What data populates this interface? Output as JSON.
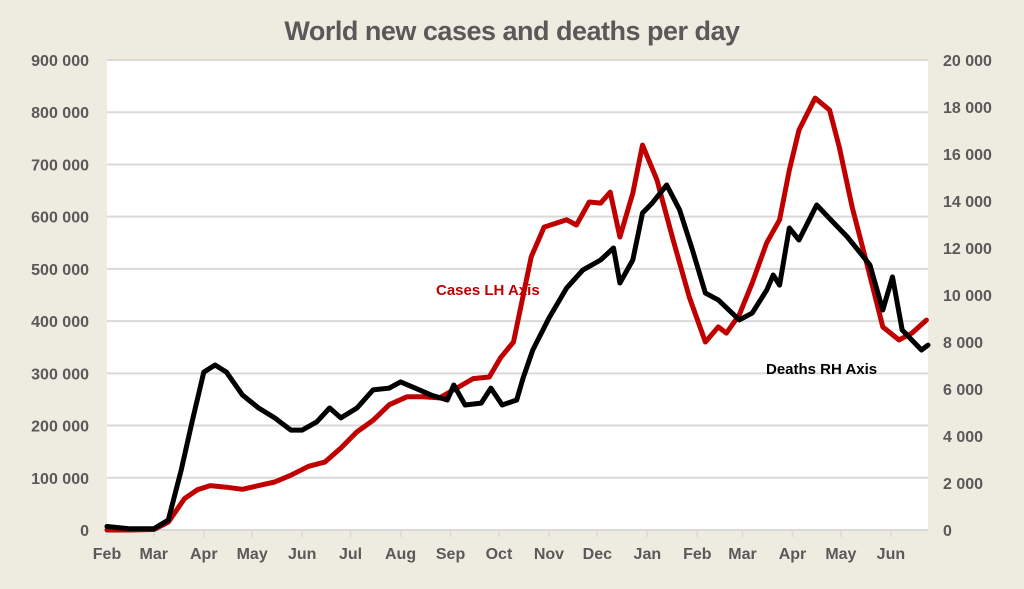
{
  "chart_data": {
    "type": "line",
    "title": "World new cases and deaths per day",
    "grid": true,
    "legend": "none",
    "x_range": [
      "2020-02-01",
      "2021-06-24"
    ],
    "x_ticks": [
      {
        "date": "2020-02-01",
        "label": "Feb"
      },
      {
        "date": "2020-03-01",
        "label": "Mar"
      },
      {
        "date": "2020-04-01",
        "label": "Apr"
      },
      {
        "date": "2020-05-01",
        "label": "May"
      },
      {
        "date": "2020-06-01",
        "label": "Jun"
      },
      {
        "date": "2020-07-01",
        "label": "Jul"
      },
      {
        "date": "2020-08-01",
        "label": "Aug"
      },
      {
        "date": "2020-09-01",
        "label": "Sep"
      },
      {
        "date": "2020-10-01",
        "label": "Oct"
      },
      {
        "date": "2020-11-01",
        "label": "Nov"
      },
      {
        "date": "2020-12-01",
        "label": "Dec"
      },
      {
        "date": "2021-01-01",
        "label": "Jan"
      },
      {
        "date": "2021-02-01",
        "label": "Feb"
      },
      {
        "date": "2021-03-01",
        "label": "Mar"
      },
      {
        "date": "2021-04-01",
        "label": "Apr"
      },
      {
        "date": "2021-05-01",
        "label": "May"
      },
      {
        "date": "2021-06-01",
        "label": "Jun"
      }
    ],
    "y_left": {
      "range": [
        0,
        900000
      ],
      "ticks": [
        0,
        100000,
        200000,
        300000,
        400000,
        500000,
        600000,
        700000,
        800000,
        900000
      ],
      "tick_labels": [
        "0",
        "100 000",
        "200 000",
        "300 000",
        "400 000",
        "500 000",
        "600 000",
        "700 000",
        "800 000",
        "900 000"
      ]
    },
    "y_right": {
      "range": [
        0,
        20000
      ],
      "ticks": [
        0,
        2000,
        4000,
        6000,
        8000,
        10000,
        12000,
        14000,
        16000,
        18000,
        20000
      ],
      "tick_labels": [
        "0",
        "2 000",
        "4 000",
        "6 000",
        "8 000",
        "10 000",
        "12 000",
        "14 000",
        "16 000",
        "18 000",
        "20 000"
      ]
    },
    "series": [
      {
        "name": "Cases LH Axis",
        "axis": "left",
        "color": "#c00000",
        "points": [
          [
            "2020-02-01",
            0
          ],
          [
            "2020-02-15",
            0
          ],
          [
            "2020-03-01",
            1000
          ],
          [
            "2020-03-10",
            15000
          ],
          [
            "2020-03-20",
            60000
          ],
          [
            "2020-03-28",
            77000
          ],
          [
            "2020-04-05",
            85000
          ],
          [
            "2020-04-15",
            82000
          ],
          [
            "2020-04-25",
            78000
          ],
          [
            "2020-05-05",
            85000
          ],
          [
            "2020-05-15",
            92000
          ],
          [
            "2020-05-25",
            105000
          ],
          [
            "2020-06-05",
            122000
          ],
          [
            "2020-06-15",
            130000
          ],
          [
            "2020-06-25",
            157000
          ],
          [
            "2020-07-05",
            188000
          ],
          [
            "2020-07-15",
            210000
          ],
          [
            "2020-07-25",
            240000
          ],
          [
            "2020-08-05",
            255000
          ],
          [
            "2020-08-15",
            255000
          ],
          [
            "2020-08-25",
            253000
          ],
          [
            "2020-09-05",
            272000
          ],
          [
            "2020-09-15",
            290000
          ],
          [
            "2020-09-25",
            293000
          ],
          [
            "2020-10-02",
            330000
          ],
          [
            "2020-10-10",
            360000
          ],
          [
            "2020-10-21",
            523000
          ],
          [
            "2020-10-29",
            580000
          ],
          [
            "2020-11-12",
            594000
          ],
          [
            "2020-11-18",
            584000
          ],
          [
            "2020-11-26",
            628000
          ],
          [
            "2020-12-03",
            626000
          ],
          [
            "2020-12-09",
            647000
          ],
          [
            "2020-12-15",
            561000
          ],
          [
            "2020-12-23",
            645000
          ],
          [
            "2020-12-29",
            737000
          ],
          [
            "2021-01-07",
            670000
          ],
          [
            "2021-01-17",
            555000
          ],
          [
            "2021-01-27",
            446000
          ],
          [
            "2021-02-06",
            360000
          ],
          [
            "2021-02-14",
            389000
          ],
          [
            "2021-02-19",
            377000
          ],
          [
            "2021-02-27",
            412000
          ],
          [
            "2021-03-07",
            473000
          ],
          [
            "2021-03-16",
            550000
          ],
          [
            "2021-03-24",
            594000
          ],
          [
            "2021-03-30",
            689000
          ],
          [
            "2021-04-05",
            766000
          ],
          [
            "2021-04-15",
            827000
          ],
          [
            "2021-04-24",
            804000
          ],
          [
            "2021-04-30",
            733000
          ],
          [
            "2021-05-08",
            618000
          ],
          [
            "2021-05-17",
            511000
          ],
          [
            "2021-05-27",
            389000
          ],
          [
            "2021-06-06",
            364000
          ],
          [
            "2021-06-14",
            377000
          ],
          [
            "2021-06-23",
            402000
          ]
        ]
      },
      {
        "name": "Deaths RH Axis",
        "axis": "right",
        "color": "#000000",
        "points": [
          [
            "2020-02-01",
            150
          ],
          [
            "2020-02-15",
            50
          ],
          [
            "2020-03-01",
            50
          ],
          [
            "2020-03-10",
            425
          ],
          [
            "2020-03-18",
            2550
          ],
          [
            "2020-03-25",
            4680
          ],
          [
            "2020-04-01",
            6720
          ],
          [
            "2020-04-08",
            7020
          ],
          [
            "2020-04-15",
            6720
          ],
          [
            "2020-04-25",
            5740
          ],
          [
            "2020-05-05",
            5190
          ],
          [
            "2020-05-15",
            4770
          ],
          [
            "2020-05-25",
            4250
          ],
          [
            "2020-06-01",
            4250
          ],
          [
            "2020-06-10",
            4600
          ],
          [
            "2020-06-18",
            5190
          ],
          [
            "2020-06-25",
            4770
          ],
          [
            "2020-07-05",
            5190
          ],
          [
            "2020-07-15",
            5960
          ],
          [
            "2020-07-25",
            6040
          ],
          [
            "2020-08-01",
            6300
          ],
          [
            "2020-08-10",
            6040
          ],
          [
            "2020-08-20",
            5740
          ],
          [
            "2020-08-30",
            5530
          ],
          [
            "2020-09-03",
            6170
          ],
          [
            "2020-09-10",
            5320
          ],
          [
            "2020-09-20",
            5400
          ],
          [
            "2020-09-26",
            6040
          ],
          [
            "2020-10-03",
            5320
          ],
          [
            "2020-10-12",
            5530
          ],
          [
            "2020-10-16",
            6470
          ],
          [
            "2020-10-22",
            7660
          ],
          [
            "2020-11-01",
            9020
          ],
          [
            "2020-11-12",
            10300
          ],
          [
            "2020-11-22",
            11060
          ],
          [
            "2020-12-03",
            11490
          ],
          [
            "2020-12-11",
            12000
          ],
          [
            "2020-12-15",
            10510
          ],
          [
            "2020-12-23",
            11490
          ],
          [
            "2020-12-29",
            13490
          ],
          [
            "2021-01-04",
            13910
          ],
          [
            "2021-01-13",
            14680
          ],
          [
            "2021-01-21",
            13620
          ],
          [
            "2021-01-29",
            11910
          ],
          [
            "2021-02-06",
            10080
          ],
          [
            "2021-02-14",
            9790
          ],
          [
            "2021-02-27",
            8940
          ],
          [
            "2021-03-07",
            9230
          ],
          [
            "2021-03-16",
            10210
          ],
          [
            "2021-03-20",
            10850
          ],
          [
            "2021-03-24",
            10420
          ],
          [
            "2021-03-30",
            12850
          ],
          [
            "2021-04-05",
            12340
          ],
          [
            "2021-04-16",
            13830
          ],
          [
            "2021-04-26",
            13110
          ],
          [
            "2021-05-05",
            12470
          ],
          [
            "2021-05-13",
            11790
          ],
          [
            "2021-05-19",
            11280
          ],
          [
            "2021-05-27",
            9360
          ],
          [
            "2021-06-02",
            10770
          ],
          [
            "2021-06-08",
            8510
          ],
          [
            "2021-06-20",
            7660
          ],
          [
            "2021-06-24",
            7870
          ]
        ]
      }
    ],
    "annotations": [
      {
        "text": "Cases LH Axis",
        "color": "#c00000"
      },
      {
        "text": "Deaths RH Axis",
        "color": "#000000"
      }
    ]
  }
}
